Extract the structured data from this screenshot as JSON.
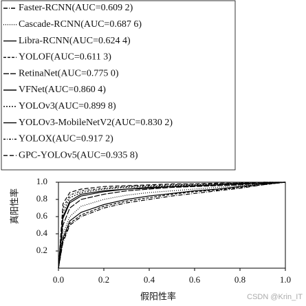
{
  "chart_data": {
    "type": "line",
    "x_label": "假阳性率",
    "y_label": "真阳性率",
    "watermark": "CSDN @Krin_IT",
    "x": [
      0,
      0.02,
      0.05,
      0.1,
      0.2,
      0.3,
      0.4,
      0.5,
      0.6,
      0.7,
      0.8,
      0.9,
      1
    ],
    "xlim": [
      0,
      1
    ],
    "ylim": [
      0,
      1
    ],
    "xticks": [
      {
        "value": 0,
        "label": "0.0"
      },
      0.2,
      0.4,
      0.6,
      0.8,
      {
        "value": 1,
        "label": "1.0"
      }
    ],
    "yticks": [
      0.2,
      0.4,
      0.6,
      0.8,
      {
        "value": 1,
        "label": "1.0"
      }
    ],
    "legend": "upper left",
    "series": [
      {
        "name": "Faster-RCNN(AUC=0.609 2)",
        "color": "#000000",
        "dash": "6,2,1,2",
        "values": [
          0,
          0.3,
          0.5,
          0.6,
          0.7,
          0.76,
          0.8,
          0.84,
          0.87,
          0.9,
          0.93,
          0.97,
          1
        ]
      },
      {
        "name": "Cascade-RCNN(AUC=0.687 6)",
        "color": "#000000",
        "dash": "1,2",
        "values": [
          0,
          0.4,
          0.6,
          0.72,
          0.8,
          0.85,
          0.88,
          0.9,
          0.92,
          0.94,
          0.96,
          0.98,
          1
        ]
      },
      {
        "name": "Libra-RCNN(AUC=0.624 4)",
        "color": "#000000",
        "dash": "none",
        "values": [
          0,
          0.35,
          0.55,
          0.65,
          0.74,
          0.8,
          0.84,
          0.87,
          0.9,
          0.92,
          0.95,
          0.98,
          1
        ]
      },
      {
        "name": "YOLOF(AUC=0.611 3)",
        "color": "#000000",
        "dash": "4,2",
        "values": [
          0,
          0.32,
          0.52,
          0.62,
          0.72,
          0.78,
          0.82,
          0.86,
          0.89,
          0.91,
          0.94,
          0.97,
          1
        ]
      },
      {
        "name": "RetinaNet(AUC=0.775 0)",
        "color": "#000000",
        "dash": "8,2",
        "values": [
          0,
          0.5,
          0.7,
          0.8,
          0.86,
          0.9,
          0.92,
          0.94,
          0.95,
          0.96,
          0.97,
          0.99,
          1
        ]
      },
      {
        "name": "VFNet(AUC=0.860 4)",
        "color": "#000000",
        "dash": "none",
        "values": [
          0,
          0.6,
          0.78,
          0.86,
          0.9,
          0.92,
          0.94,
          0.95,
          0.96,
          0.97,
          0.98,
          0.99,
          1
        ]
      },
      {
        "name": "YOLOv3(AUC=0.899 8)",
        "color": "#000000",
        "dash": "2,2",
        "values": [
          0,
          0.65,
          0.82,
          0.88,
          0.92,
          0.94,
          0.95,
          0.96,
          0.97,
          0.98,
          0.99,
          0.99,
          1
        ]
      },
      {
        "name": "YOLOv3-MobileNetV2(AUC=0.830 2)",
        "color": "#000000",
        "dash": "none",
        "values": [
          0,
          0.58,
          0.76,
          0.84,
          0.89,
          0.92,
          0.93,
          0.95,
          0.96,
          0.97,
          0.98,
          0.99,
          1
        ]
      },
      {
        "name": "YOLOX(AUC=0.917 2)",
        "color": "#000000",
        "dash": "3,2,1,2",
        "values": [
          0,
          0.7,
          0.85,
          0.9,
          0.93,
          0.95,
          0.96,
          0.97,
          0.98,
          0.98,
          0.99,
          1,
          1
        ]
      },
      {
        "name": "GPC-YOLOv5(AUC=0.935 8)",
        "color": "#000000",
        "dash": "6,3",
        "values": [
          0,
          0.75,
          0.88,
          0.92,
          0.95,
          0.96,
          0.97,
          0.98,
          0.98,
          0.99,
          0.99,
          1,
          1
        ]
      }
    ]
  }
}
